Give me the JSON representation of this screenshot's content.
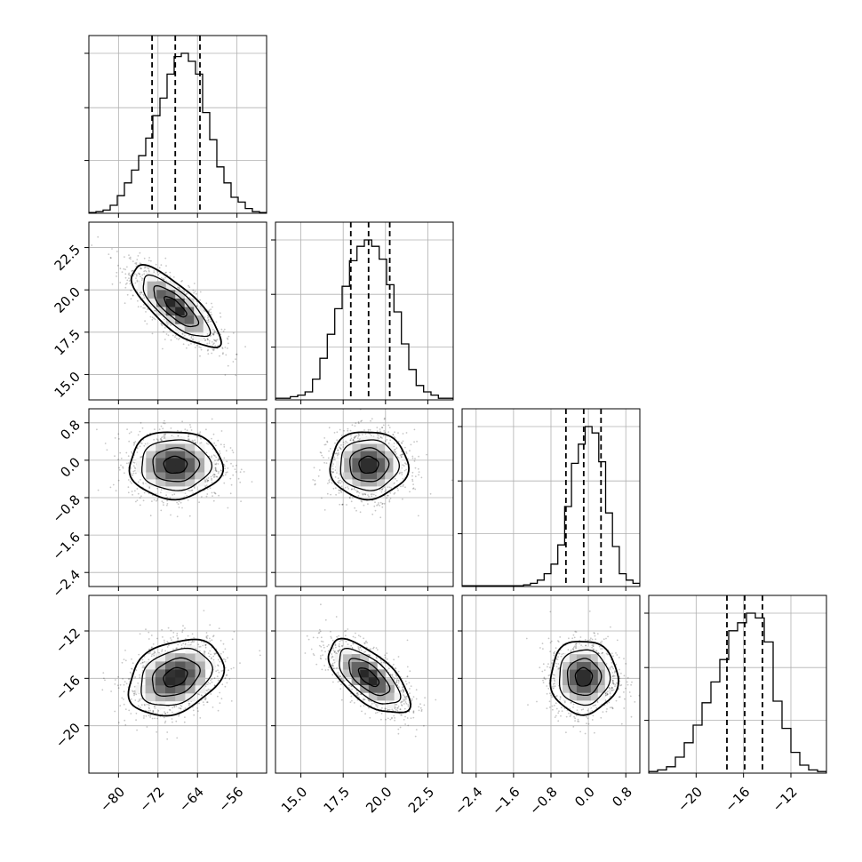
{
  "chart_data": {
    "type": "corner",
    "title": "",
    "grid": true,
    "params": [
      {
        "range": [
          -86,
          -50
        ],
        "ticks": [
          -80,
          -72,
          -64,
          -56
        ],
        "tick_labels": [
          "−80",
          "−72",
          "−64",
          "−56"
        ],
        "median": -68.5,
        "q16": -73.2,
        "q84": -63.5
      },
      {
        "range": [
          13.5,
          24
        ],
        "ticks": [
          15.0,
          17.5,
          20.0,
          22.5
        ],
        "tick_labels": [
          "15.0",
          "17.5",
          "20.0",
          "22.5"
        ],
        "median": 19.0,
        "q16": 17.95,
        "q84": 20.25
      },
      {
        "range": [
          -2.7,
          1.1
        ],
        "ticks": [
          -2.4,
          -1.6,
          -0.8,
          0.0,
          0.8
        ],
        "tick_labels": [
          "−2.4",
          "−1.6",
          "−0.8",
          "0.0",
          "0.8"
        ],
        "median": -0.1,
        "q16": -0.48,
        "q84": 0.27
      },
      {
        "range": [
          -24,
          -9
        ],
        "ticks": [
          -20,
          -16,
          -12
        ],
        "tick_labels": [
          "−20",
          "−16",
          "−12"
        ],
        "median": -15.9,
        "q16": -17.4,
        "q84": -14.4
      }
    ],
    "histograms": [
      [
        0.005,
        0.01,
        0.02,
        0.05,
        0.11,
        0.19,
        0.27,
        0.36,
        0.47,
        0.61,
        0.72,
        0.87,
        0.98,
        1.0,
        0.95,
        0.87,
        0.63,
        0.46,
        0.29,
        0.19,
        0.1,
        0.07,
        0.03,
        0.01,
        0.005
      ],
      [
        0.01,
        0.01,
        0.02,
        0.03,
        0.05,
        0.13,
        0.26,
        0.41,
        0.57,
        0.71,
        0.87,
        0.96,
        1.0,
        0.96,
        0.88,
        0.72,
        0.55,
        0.35,
        0.19,
        0.09,
        0.05,
        0.03,
        0.01,
        0.01
      ],
      [
        0.005,
        0.005,
        0.005,
        0.005,
        0.005,
        0.005,
        0.005,
        0.005,
        0.005,
        0.01,
        0.02,
        0.04,
        0.08,
        0.14,
        0.26,
        0.5,
        0.77,
        0.89,
        1.0,
        0.96,
        0.78,
        0.46,
        0.25,
        0.08,
        0.04,
        0.02
      ],
      [
        0.01,
        0.02,
        0.04,
        0.1,
        0.19,
        0.3,
        0.44,
        0.57,
        0.71,
        0.89,
        0.94,
        1.0,
        0.97,
        0.82,
        0.45,
        0.28,
        0.13,
        0.05,
        0.02,
        0.01
      ]
    ],
    "pairs": [
      {
        "row": 1,
        "col": 0,
        "cx": -68.5,
        "cy": 19.0,
        "sx": 4.5,
        "sy": 1.2,
        "rho": -0.78
      },
      {
        "row": 2,
        "col": 0,
        "cx": -68.5,
        "cy": -0.1,
        "sx": 4.7,
        "sy": 0.36,
        "rho": 0.0
      },
      {
        "row": 2,
        "col": 1,
        "cx": 19.0,
        "cy": -0.1,
        "sx": 1.15,
        "sy": 0.36,
        "rho": 0.0
      },
      {
        "row": 3,
        "col": 0,
        "cx": -68.5,
        "cy": -15.9,
        "sx": 4.8,
        "sy": 1.6,
        "rho": 0.3
      },
      {
        "row": 3,
        "col": 1,
        "cx": 19.0,
        "cy": -15.9,
        "sx": 1.2,
        "sy": 1.55,
        "rho": -0.65
      },
      {
        "row": 3,
        "col": 2,
        "cx": -0.1,
        "cy": -15.9,
        "sx": 0.36,
        "sy": 1.55,
        "rho": 0.0
      }
    ],
    "contour_levels_sigma": [
      0.5,
      1.0,
      1.5,
      2.0
    ],
    "colors": {
      "axis": "#000000",
      "grid": "#b0b0b0",
      "line": "#000000",
      "points": "#000000"
    }
  }
}
